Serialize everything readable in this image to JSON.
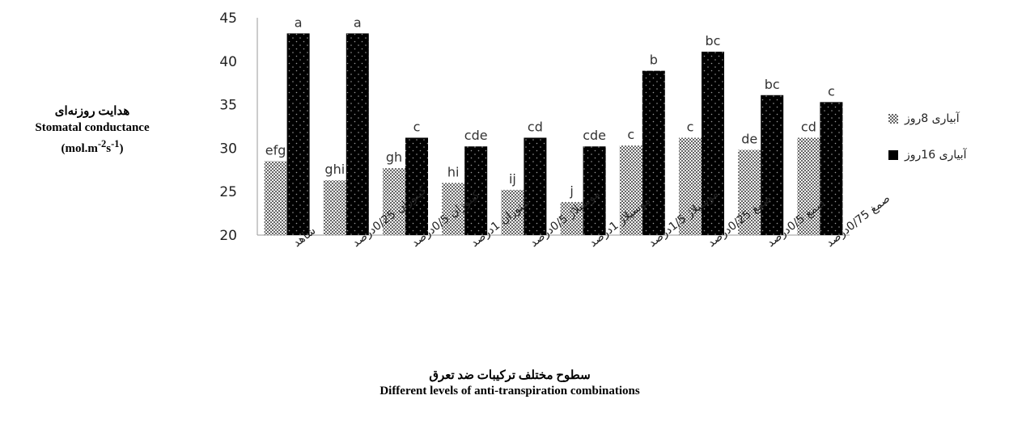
{
  "chart_data": {
    "type": "bar",
    "title": "",
    "ylabel_fa": "هدایت روزنه‌ای",
    "ylabel_en": "Stomatal conductance",
    "ylabel_unit": "(mol.m-2s-1)",
    "xlabel_fa": "سطوح مختلف ترکیبات ضد تعرق",
    "xlabel_en": "Different levels of anti-transpiration combinations",
    "ylim": [
      20,
      45
    ],
    "yticks": [
      20,
      25,
      30,
      35,
      40,
      45
    ],
    "grid": false,
    "legend_position": "right",
    "categories": [
      "شاهد",
      "کیتوزان 0/25درصد",
      "کیتوزان 0/5درصد",
      "کیتوزان 1درصد",
      "موسیلاژ 0/5درصد",
      "موسیلاژ 1درصد",
      "موسیلاژ 1/5درصد",
      "صمغ 0/25درصد",
      "صمغ 0/5درصد",
      "صمغ 0/75درصد"
    ],
    "series": [
      {
        "name": "آبیاری 8روز",
        "color": "#777777",
        "values": [
          28.5,
          26.3,
          27.7,
          26.0,
          25.2,
          23.8,
          30.3,
          31.2,
          29.8,
          31.2
        ],
        "labels": [
          "efg",
          "ghi",
          "gh",
          "hi",
          "ij",
          "j",
          "c",
          "c",
          "de",
          "cd"
        ]
      },
      {
        "name": "آبیاری 16روز",
        "color": "#000000",
        "values": [
          43.2,
          43.2,
          31.2,
          30.2,
          31.2,
          30.2,
          38.9,
          41.1,
          36.1,
          35.3
        ],
        "labels": [
          "a",
          "a",
          "c",
          "cde",
          "cd",
          "cde",
          "b",
          "bc",
          "bc",
          "c"
        ]
      }
    ]
  }
}
